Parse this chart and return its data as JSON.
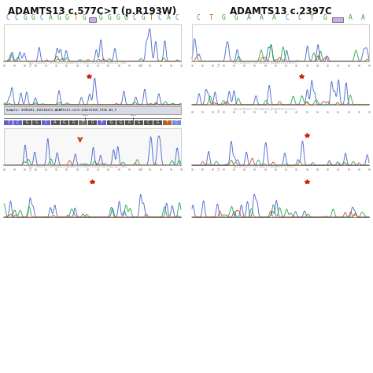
{
  "title_left": "ADAMTS13 c.577C>T (p.R193W)",
  "title_right": "ADAMTS13 c.2397C",
  "seq_left_top": [
    "C",
    "C",
    "G",
    "G",
    "C",
    "A",
    "G",
    "G",
    "T",
    "G",
    "*",
    "G",
    "G",
    "G",
    "G",
    "C",
    "G",
    "T",
    "C",
    "A",
    "C"
  ],
  "seq_left_top_colors": [
    "#5577cc",
    "#5577cc",
    "#339933",
    "#339933",
    "#5577cc",
    "#339933",
    "#339933",
    "#339933",
    "#aa6600",
    "#339933",
    "#8844bb",
    "#339933",
    "#339933",
    "#339933",
    "#339933",
    "#5577cc",
    "#339933",
    "#aa6600",
    "#5577cc",
    "#339933",
    "#5577cc"
  ],
  "seq_right_top": [
    "C",
    "T",
    "G",
    "G",
    "A",
    "A",
    "A",
    "C",
    "C",
    "T",
    "G",
    "*",
    "A",
    "A"
  ],
  "seq_right_top_colors": [
    "#5577cc",
    "#aa6600",
    "#339933",
    "#339933",
    "#339933",
    "#339933",
    "#339933",
    "#5577cc",
    "#5577cc",
    "#aa6600",
    "#339933",
    "#8844bb",
    "#339933",
    "#339933"
  ],
  "seq_detail_left": [
    "C",
    "C",
    "G",
    "G",
    "C",
    "A",
    "G",
    "G",
    "T",
    "G",
    "E",
    "G",
    "G",
    "G",
    "G",
    "C",
    "G",
    "T",
    "C"
  ],
  "seq_detail_left_colors": [
    "#5577cc",
    "#5577cc",
    "#339933",
    "#339933",
    "#5577cc",
    "#339933",
    "#339933",
    "#339933",
    "#cc4400",
    "#339933",
    "#8844bb",
    "#339933",
    "#339933",
    "#339933",
    "#339933",
    "#5577cc",
    "#339933",
    "#cc4400",
    "#5577cc"
  ],
  "seq_detail_left_bg": [
    "#4444cc",
    "#4444cc",
    "#333333",
    "#333333",
    "#4444cc",
    "#333333",
    "#333333",
    "#333333",
    "#555555",
    "#333333",
    "#4444cc",
    "#333333",
    "#333333",
    "#333333",
    "#333333",
    "#333333",
    "#333333",
    "#aa4400",
    "#5577cc"
  ],
  "bg_color": "#ffffff",
  "sample_label": "Sample: 5090201_18C044213_ADAMTS13-chr9-136291356_F266-B1_F",
  "arrow_color": "#cc2200",
  "ruler_text_color": "#999999",
  "title_fontsize": 8.5,
  "seq_fontsize": 5.8,
  "small_fontsize": 3.2
}
